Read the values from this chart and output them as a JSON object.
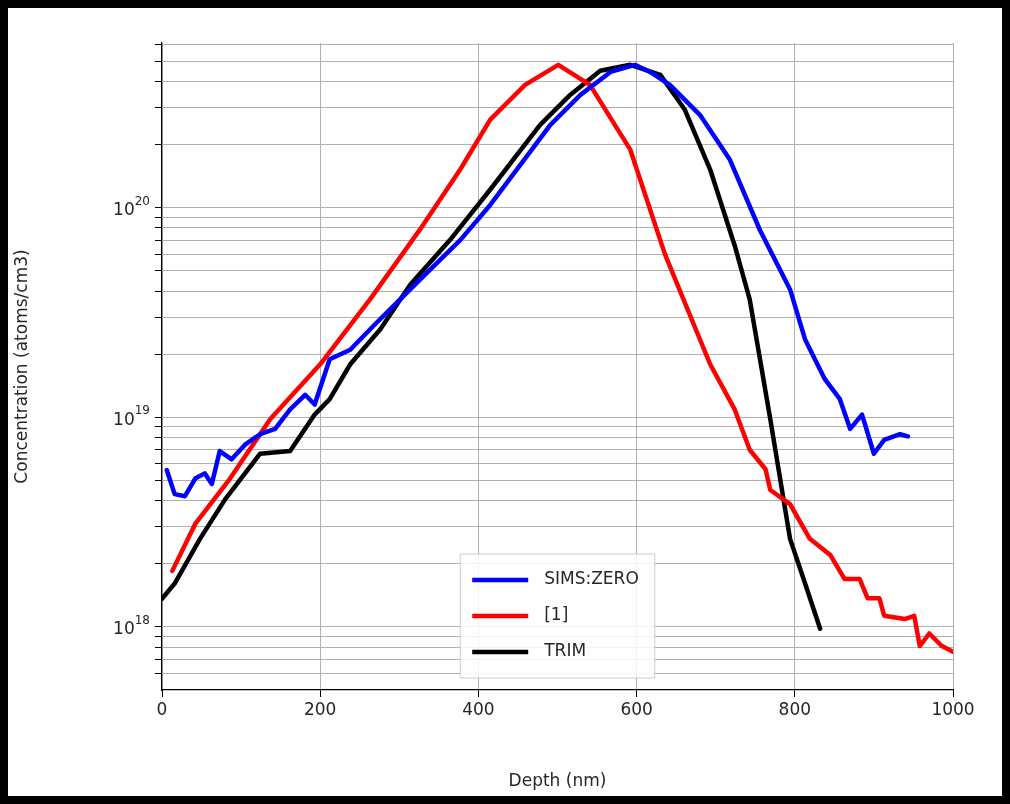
{
  "chart_data": {
    "type": "line",
    "xlabel": "Depth (nm)",
    "ylabel": "Concentration (atoms/cm3)",
    "log": "y",
    "grid": true,
    "legend": "bottom",
    "xlim": [
      0,
      1000
    ],
    "xticks": [
      0,
      200,
      400,
      600,
      800,
      1000
    ],
    "ylim": [
      5e+17,
      6.1e+20
    ],
    "yticks": [
      {
        "value": 6e+17,
        "label": null
      },
      {
        "value": 7e+17,
        "label": null
      },
      {
        "value": 8e+17,
        "label": null
      },
      {
        "value": 9e+17,
        "label": null
      },
      {
        "value": 1e+18,
        "label": "10$^{18}$"
      },
      {
        "value": 2e+18,
        "label": null
      },
      {
        "value": 3e+18,
        "label": null
      },
      {
        "value": 4e+18,
        "label": null
      },
      {
        "value": 5e+18,
        "label": null
      },
      {
        "value": 6e+18,
        "label": null
      },
      {
        "value": 7e+18,
        "label": null
      },
      {
        "value": 8e+18,
        "label": null
      },
      {
        "value": 9e+18,
        "label": null
      },
      {
        "value": 1e+19,
        "label": "10$^{19}$"
      },
      {
        "value": 2e+19,
        "label": null
      },
      {
        "value": 3e+19,
        "label": null
      },
      {
        "value": 4e+19,
        "label": null
      },
      {
        "value": 5e+19,
        "label": null
      },
      {
        "value": 6e+19,
        "label": null
      },
      {
        "value": 7e+19,
        "label": null
      },
      {
        "value": 8e+19,
        "label": null
      },
      {
        "value": 9e+19,
        "label": null
      },
      {
        "value": 1e+20,
        "label": "10$^{20}$"
      },
      {
        "value": 2e+20,
        "label": null
      },
      {
        "value": 3e+20,
        "label": null
      },
      {
        "value": 4e+20,
        "label": null
      },
      {
        "value": 5e+20,
        "label": null
      },
      {
        "value": 6e+20,
        "label": null
      }
    ],
    "series": [
      {
        "name": "SIMS:ZERO",
        "color": "#0000ff",
        "x": [
          6,
          16,
          29,
          42,
          54,
          63,
          73,
          88,
          105,
          124,
          143,
          162,
          181,
          193,
          212,
          238,
          269,
          301,
          339,
          377,
          415,
          453,
          491,
          529,
          567,
          598,
          617,
          642,
          680,
          718,
          756,
          794,
          813,
          838,
          857,
          870,
          885,
          900,
          913,
          933,
          943
        ],
        "values": [
          5.6e+18,
          4.3e+18,
          4.2e+18,
          5.1e+18,
          5.4e+18,
          4.8e+18,
          6.9e+18,
          6.3e+18,
          7.4e+18,
          8.3e+18,
          8.8e+18,
          1.09e+19,
          1.28e+19,
          1.15e+19,
          1.89e+19,
          2.1e+19,
          2.77e+19,
          3.65e+19,
          5.06e+19,
          7e+19,
          1.03e+20,
          1.6e+20,
          2.48e+20,
          3.45e+20,
          4.44e+20,
          4.8e+20,
          4.44e+20,
          3.85e+20,
          2.77e+20,
          1.69e+20,
          7.8e+19,
          4.07e+19,
          2.35e+19,
          1.52e+19,
          1.22e+19,
          8.8e+18,
          1.03e+19,
          6.7e+18,
          7.8e+18,
          8.3e+18,
          8.1e+18
        ]
      },
      {
        "name": "[1]",
        "color": "#ff0000",
        "x": [
          13,
          42,
          86,
          137,
          200,
          263,
          326,
          377,
          415,
          459,
          501,
          541,
          592,
          636,
          693,
          724,
          743,
          763,
          769,
          794,
          819,
          845,
          863,
          882,
          892,
          907,
          913,
          939,
          951,
          958,
          970,
          986,
          1000
        ],
        "values": [
          1.85e+18,
          3.1e+18,
          5.1e+18,
          9.8e+18,
          1.79e+19,
          3.65e+19,
          7.85e+19,
          1.52e+20,
          2.63e+20,
          3.85e+20,
          4.8e+20,
          3.85e+20,
          1.89e+20,
          5.97e+19,
          1.79e+19,
          1.09e+19,
          7e+18,
          5.65e+18,
          4.5e+18,
          3.85e+18,
          2.63e+18,
          2.2e+18,
          1.69e+18,
          1.69e+18,
          1.37e+18,
          1.37e+18,
          1.13e+18,
          1.09e+18,
          1.13e+18,
          8.1e+17,
          9.3e+17,
          8.1e+17,
          7.6e+17
        ]
      },
      {
        "name": "TRIM",
        "color": "#000000",
        "x": [
          0,
          16,
          48,
          80,
          124,
          162,
          193,
          212,
          238,
          276,
          314,
          364,
          415,
          478,
          516,
          554,
          592,
          630,
          661,
          693,
          724,
          743,
          769,
          794,
          813,
          832
        ],
        "values": [
          1.36e+18,
          1.61e+18,
          2.63e+18,
          4.07e+18,
          6.7e+18,
          6.9e+18,
          1.03e+19,
          1.22e+19,
          1.79e+19,
          2.63e+19,
          4.3e+19,
          7e+19,
          1.22e+20,
          2.48e+20,
          3.45e+20,
          4.5e+20,
          4.8e+20,
          4.3e+20,
          2.93e+20,
          1.52e+20,
          6.6e+19,
          3.65e+19,
          9.8e+18,
          2.63e+18,
          1.61e+18,
          9.8e+17
        ]
      }
    ]
  }
}
